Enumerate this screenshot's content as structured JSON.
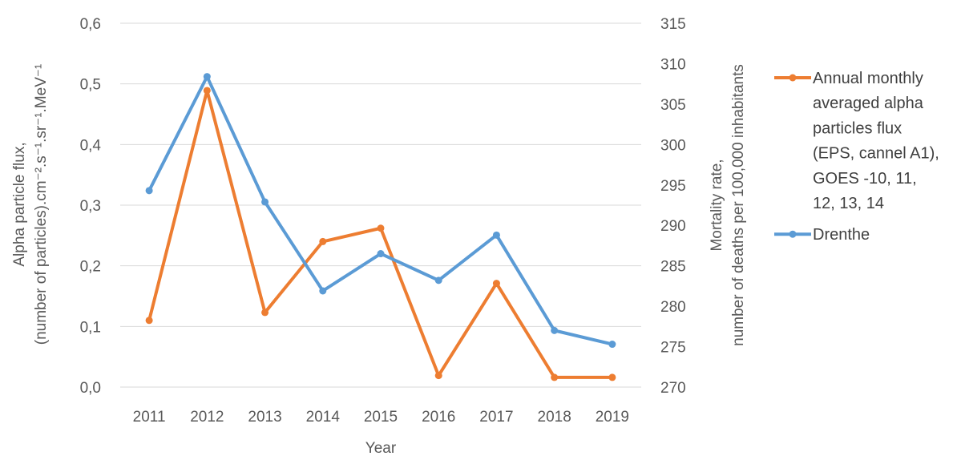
{
  "chart_data": {
    "type": "line",
    "title": "",
    "xlabel": "Year",
    "ylabel_left": [
      "Alpha particle flux,",
      "(number of particles).cm⁻².s⁻¹.sr⁻¹.MeV⁻¹"
    ],
    "ylabel_right": [
      "Mortality rate,",
      "number of deaths per 100,000 inhabitants"
    ],
    "categories": [
      "2011",
      "2012",
      "2013",
      "2014",
      "2015",
      "2016",
      "2017",
      "2018",
      "2019"
    ],
    "ylim_left": [
      0,
      0.6
    ],
    "yticks_left": [
      "0,0",
      "0,1",
      "0,2",
      "0,3",
      "0,4",
      "0,5",
      "0,6"
    ],
    "ylim_right": [
      270,
      315
    ],
    "yticks_right": [
      "270",
      "275",
      "280",
      "285",
      "290",
      "295",
      "300",
      "305",
      "310",
      "315"
    ],
    "grid": true,
    "legend_position": "right",
    "series": [
      {
        "name": "Annual monthly averaged alpha particles flux (EPS, cannel A1), GOES -10, 11, 12, 13, 14",
        "legend_lines": [
          "Annual monthly",
          "averaged alpha",
          "particles flux",
          "(EPS, cannel A1),",
          "GOES -10, 11,",
          "12, 13, 14"
        ],
        "axis": "left",
        "color": "#ED7D31",
        "values": [
          0.11,
          0.489,
          0.123,
          0.24,
          0.262,
          0.019,
          0.171,
          0.016,
          0.016
        ]
      },
      {
        "name": "Drenthe",
        "legend_lines": [
          "Drenthe"
        ],
        "axis": "right",
        "color": "#5B9BD5",
        "values": [
          294.3,
          308.4,
          292.9,
          281.9,
          286.5,
          283.2,
          288.8,
          277.0,
          275.3
        ]
      }
    ]
  }
}
